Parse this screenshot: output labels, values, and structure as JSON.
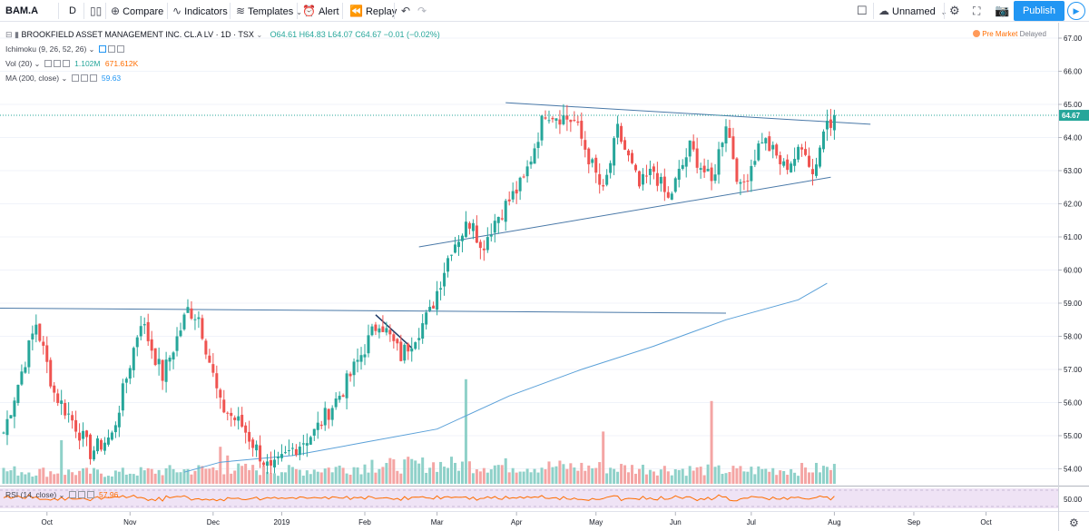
{
  "toolbar": {
    "symbol": "BAM.A",
    "interval": "D",
    "compare": "Compare",
    "indicators": "Indicators",
    "templates": "Templates",
    "alert": "Alert",
    "replay": "Replay",
    "layout_name": "Unnamed",
    "publish": "Publish"
  },
  "header": {
    "title": "BROOKFIELD ASSET MANAGEMENT INC. CL.A LV · 1D · TSX",
    "ohlc": "O64.61  H64.83  L64.07  C64.67  −0.01 (−0.02%)",
    "premarket": "Pre Market",
    "delayed": "Delayed"
  },
  "legends": {
    "ichimoku": "Ichimoku (9, 26, 52, 26)",
    "vol_label": "Vol (20)",
    "vol_value1": "1.102M",
    "vol_value2": "671.612K",
    "ma_label": "MA (200, close)",
    "ma_value": "59.63",
    "rsi_label": "RSI (14, close)",
    "rsi_value": "57.96"
  },
  "colors": {
    "up": "#26a69a",
    "down": "#ef5350",
    "vol_up": "#8fd1c9",
    "vol_down": "#f4a5a4",
    "ma": "#5aa0d8",
    "trendline": "#4a79a8",
    "rsi": "#ff6d00",
    "rsi_band": "#efe3f5",
    "accent": "#2196f3",
    "last_price": "#26a69a"
  },
  "chart_data": {
    "type": "candlestick",
    "last_price": 64.67,
    "ylim": [
      53.6,
      67.2
    ],
    "yticks": [
      54,
      55,
      56,
      57,
      58,
      59,
      60,
      61,
      62,
      63,
      64,
      65,
      66,
      67
    ],
    "x_labels": [
      "Oct",
      "Nov",
      "Dec",
      "2019",
      "Feb",
      "Mar",
      "Apr",
      "May",
      "Jun",
      "Jul",
      "Aug",
      "Sep",
      "Oct"
    ],
    "rsi_ticks": [
      50
    ],
    "rsi_value": 57.96,
    "ma200_value": 59.63,
    "keypoints": [
      [
        0,
        55.1
      ],
      [
        9,
        58.4
      ],
      [
        14,
        56.3
      ],
      [
        20,
        55.3
      ],
      [
        24,
        54.5
      ],
      [
        30,
        55.0
      ],
      [
        38,
        58.5
      ],
      [
        44,
        56.8
      ],
      [
        51,
        58.8
      ],
      [
        54,
        58.6
      ],
      [
        60,
        55.9
      ],
      [
        66,
        55.3
      ],
      [
        74,
        53.9
      ],
      [
        80,
        54.6
      ],
      [
        86,
        55.1
      ],
      [
        94,
        56.4
      ],
      [
        104,
        58.5
      ],
      [
        110,
        57.4
      ],
      [
        118,
        58.7
      ],
      [
        124,
        60.7
      ],
      [
        130,
        61.6
      ],
      [
        132,
        60.6
      ],
      [
        136,
        61.5
      ],
      [
        144,
        62.7
      ],
      [
        150,
        64.8
      ],
      [
        158,
        64.5
      ],
      [
        166,
        62.3
      ],
      [
        170,
        64.2
      ],
      [
        176,
        62.5
      ],
      [
        180,
        63.0
      ],
      [
        184,
        62.1
      ],
      [
        190,
        63.7
      ],
      [
        196,
        62.6
      ],
      [
        200,
        64.5
      ],
      [
        204,
        62.4
      ],
      [
        210,
        64.0
      ],
      [
        216,
        63.1
      ],
      [
        222,
        63.7
      ],
      [
        224,
        62.9
      ],
      [
        228,
        64.6
      ],
      [
        230,
        64.5
      ]
    ],
    "volume_keypoints": [
      [
        0,
        0.3
      ],
      [
        30,
        0.25
      ],
      [
        60,
        0.35
      ],
      [
        80,
        0.3
      ],
      [
        100,
        0.4
      ],
      [
        120,
        0.45
      ],
      [
        150,
        0.4
      ],
      [
        180,
        0.35
      ],
      [
        200,
        0.3
      ],
      [
        230,
        0.35
      ]
    ],
    "volume_spikes": [
      [
        16,
        1.0
      ],
      [
        60,
        0.85
      ],
      [
        62,
        0.65
      ],
      [
        102,
        0.55
      ],
      [
        128,
        2.4
      ],
      [
        166,
        1.2
      ],
      [
        196,
        1.9
      ]
    ],
    "trendlines": [
      {
        "name": "resistance-top",
        "p1": [
          139,
          65.05
        ],
        "p2": [
          240,
          64.4
        ]
      },
      {
        "name": "support-bottom",
        "p1": [
          115,
          60.7
        ],
        "p2": [
          229,
          62.8
        ]
      },
      {
        "name": "old-resistance",
        "p1": [
          -1,
          58.85
        ],
        "p2": [
          200,
          58.7
        ]
      },
      {
        "name": "flag-line",
        "p1": [
          103,
          58.65
        ],
        "p2": [
          113,
          57.65
        ]
      }
    ],
    "ma200": [
      [
        50,
        53.9
      ],
      [
        60,
        54.2
      ],
      [
        80,
        54.4
      ],
      [
        100,
        54.8
      ],
      [
        120,
        55.2
      ],
      [
        140,
        56.2
      ],
      [
        160,
        57.0
      ],
      [
        180,
        57.7
      ],
      [
        200,
        58.5
      ],
      [
        220,
        59.1
      ],
      [
        228,
        59.6
      ]
    ]
  }
}
